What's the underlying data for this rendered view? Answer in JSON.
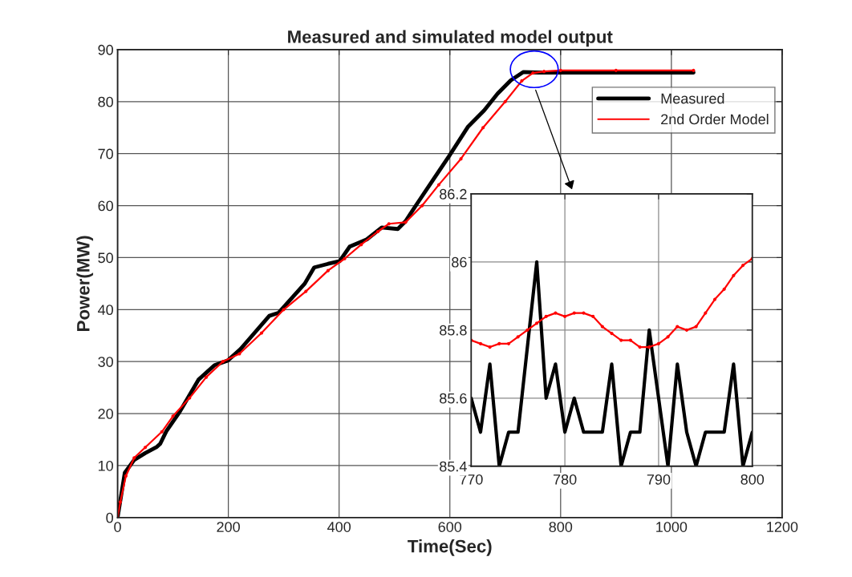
{
  "chart_data": [
    {
      "type": "line",
      "title": "Measured and simulated model output",
      "xlabel": "Time(Sec)",
      "ylabel": "Power(MW)",
      "xlim": [
        0,
        1200
      ],
      "xticks": [
        0,
        200,
        400,
        600,
        800,
        1000,
        1200
      ],
      "ylim": [
        0,
        90
      ],
      "yticks": [
        0,
        10,
        20,
        30,
        40,
        50,
        60,
        70,
        80,
        90
      ],
      "grid": true,
      "legend": "top right",
      "series": [
        {
          "name": "Measured",
          "color": "#000000",
          "line_style": "solid",
          "marker": "none",
          "x": [
            0,
            13,
            30,
            50,
            71,
            77,
            88,
            112,
            146,
            175,
            199,
            222,
            239,
            274,
            291,
            338,
            355,
            380,
            401,
            419,
            450,
            477,
            506,
            520,
            541,
            570,
            599,
            633,
            662,
            686,
            710,
            733,
            760,
            800,
            900,
            1040
          ],
          "values": [
            0,
            8.6,
            11.1,
            12.4,
            13.6,
            14.2,
            16.6,
            20.3,
            26.5,
            29.3,
            30.2,
            32.4,
            34.5,
            38.8,
            39.4,
            45,
            48.1,
            48.8,
            49.3,
            52.1,
            53.5,
            55.8,
            55.5,
            57,
            60.4,
            65,
            69.6,
            75.2,
            78.3,
            81.5,
            84.1,
            85.7,
            85.6,
            85.6,
            85.6,
            85.6
          ]
        },
        {
          "name": "2nd Order Model",
          "color": "#ff0000",
          "line_style": "solid",
          "marker": "circle",
          "x": [
            0,
            5,
            15,
            30,
            50,
            80,
            100,
            130,
            160,
            190,
            220,
            260,
            300,
            340,
            380,
            410,
            440,
            470,
            490,
            520,
            550,
            580,
            620,
            660,
            700,
            730,
            750,
            770,
            800,
            900,
            1040
          ],
          "values": [
            0,
            3,
            8,
            11.5,
            13.5,
            16.5,
            19.5,
            23,
            27,
            30,
            31.5,
            35.5,
            40,
            43.5,
            47.5,
            49.8,
            52.5,
            55,
            56.5,
            56.8,
            60,
            64,
            69,
            75,
            80,
            84,
            85.5,
            85.8,
            86,
            86,
            86
          ]
        }
      ]
    },
    {
      "type": "line",
      "xlim": [
        770,
        800
      ],
      "xticks": [
        770,
        780,
        790,
        800
      ],
      "ylim": [
        85.4,
        86.2
      ],
      "yticks": [
        85.4,
        85.6,
        85.8,
        86,
        86.2
      ],
      "grid": true,
      "legend": false,
      "series": [
        {
          "color": "#000000",
          "line_style": "solid",
          "marker": "none",
          "x": [
            770,
            771,
            772,
            773,
            774,
            775,
            777,
            778,
            779,
            780,
            781,
            782,
            784,
            785,
            786,
            787,
            788,
            789,
            791,
            792,
            793,
            794,
            795,
            797,
            798,
            799,
            800
          ],
          "values": [
            85.6,
            85.5,
            85.7,
            85.4,
            85.5,
            85.5,
            86,
            85.6,
            85.7,
            85.5,
            85.6,
            85.5,
            85.5,
            85.7,
            85.4,
            85.5,
            85.5,
            85.8,
            85.4,
            85.7,
            85.5,
            85.4,
            85.5,
            85.5,
            85.7,
            85.4,
            85.5
          ]
        },
        {
          "color": "#ff0000",
          "line_style": "solid",
          "marker": "circle",
          "x": [
            770,
            771,
            772,
            773,
            774,
            775,
            776,
            777,
            778,
            779,
            780,
            781,
            782,
            783,
            784,
            785,
            786,
            787,
            788,
            789,
            790,
            791,
            792,
            793,
            794,
            795,
            796,
            797,
            798,
            799,
            800
          ],
          "values": [
            85.77,
            85.76,
            85.75,
            85.76,
            85.76,
            85.78,
            85.8,
            85.82,
            85.84,
            85.85,
            85.84,
            85.85,
            85.85,
            85.84,
            85.81,
            85.79,
            85.77,
            85.77,
            85.75,
            85.75,
            85.76,
            85.78,
            85.81,
            85.8,
            85.81,
            85.85,
            85.89,
            85.92,
            85.96,
            85.99,
            86.01
          ]
        }
      ]
    }
  ]
}
